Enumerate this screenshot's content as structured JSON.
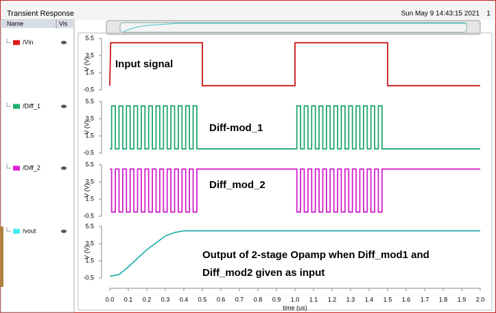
{
  "window": {
    "title": "Transient Response",
    "date": "Sun May 9 14:43:15 2021",
    "page": "1"
  },
  "legend_header": [
    "Name",
    "Vis"
  ],
  "chart_data": {
    "type": "line",
    "xlabel": "time (us)",
    "ylabel": "V (V)",
    "xlim": [
      0,
      2.0
    ],
    "xticks": [
      {
        "value": 0,
        "label": "0.0"
      },
      0.1,
      0.2,
      0.3,
      0.4,
      0.5,
      0.6,
      0.7,
      0.8,
      0.9,
      {
        "value": 1,
        "label": "1.0"
      },
      1.1,
      1.2,
      1.3,
      1.4,
      1.5,
      1.6,
      1.7,
      1.8,
      1.9,
      {
        "value": 2,
        "label": "2.0"
      }
    ],
    "ylim": [
      -0.5,
      5.5
    ],
    "yticks": [
      -0.5,
      1.5,
      3.5,
      5.5
    ],
    "series": [
      {
        "name": "/Vin",
        "color": "#c81414",
        "swatch": "#e01818",
        "annotation": [
          "Input signal"
        ],
        "x": [
          0,
          0.005,
          0.5,
          0.5,
          1.0,
          1.0,
          1.5,
          1.5,
          2.0
        ],
        "values": [
          0,
          5,
          5,
          0,
          0,
          5,
          5,
          0,
          0
        ]
      },
      {
        "name": "/Diff_1",
        "color": "#1fa56e",
        "swatch": "#1fb070",
        "annotation": [
          "Diff-mod_1"
        ],
        "x": [
          0,
          0.01,
          0.01,
          0.03,
          0.03,
          0.05,
          0.05,
          0.07,
          0.07,
          0.09,
          0.09,
          0.11,
          0.11,
          0.13,
          0.13,
          0.15,
          0.15,
          0.17,
          0.17,
          0.19,
          0.19,
          0.21,
          0.21,
          0.23,
          0.23,
          0.25,
          0.25,
          0.27,
          0.27,
          0.29,
          0.29,
          0.31,
          0.31,
          0.33,
          0.33,
          0.35,
          0.35,
          0.37,
          0.37,
          0.39,
          0.39,
          0.41,
          0.41,
          0.43,
          0.43,
          0.45,
          0.45,
          0.47,
          0.47,
          1.01,
          1.01,
          1.03,
          1.03,
          1.05,
          1.05,
          1.07,
          1.07,
          1.09,
          1.09,
          1.11,
          1.11,
          1.13,
          1.13,
          1.15,
          1.15,
          1.17,
          1.17,
          1.19,
          1.19,
          1.21,
          1.21,
          1.23,
          1.23,
          1.25,
          1.25,
          1.27,
          1.27,
          1.29,
          1.29,
          1.31,
          1.31,
          1.33,
          1.33,
          1.35,
          1.35,
          1.37,
          1.37,
          1.39,
          1.39,
          1.41,
          1.41,
          1.43,
          1.43,
          1.45,
          1.45,
          1.47,
          1.47,
          2.0
        ],
        "values": [
          0,
          0,
          5,
          5,
          0,
          0,
          5,
          5,
          0,
          0,
          5,
          5,
          0,
          0,
          5,
          5,
          0,
          0,
          5,
          5,
          0,
          0,
          5,
          5,
          0,
          0,
          5,
          5,
          0,
          0,
          5,
          5,
          0,
          0,
          5,
          5,
          0,
          0,
          5,
          5,
          0,
          0,
          5,
          5,
          0,
          0,
          5,
          5,
          0,
          0,
          5,
          5,
          0,
          0,
          5,
          5,
          0,
          0,
          5,
          5,
          0,
          0,
          5,
          5,
          0,
          0,
          5,
          5,
          0,
          0,
          5,
          5,
          0,
          0,
          5,
          5,
          0,
          0,
          5,
          5,
          0,
          0,
          5,
          5,
          0,
          0,
          5,
          5,
          0,
          0,
          5,
          5,
          0,
          0,
          5,
          5,
          0,
          0
        ]
      },
      {
        "name": "/Diff_2",
        "color": "#d020c8",
        "swatch": "#e020d8",
        "annotation": [
          "Diff_mod_2"
        ],
        "x": [
          0,
          0.01,
          0.01,
          0.03,
          0.03,
          0.05,
          0.05,
          0.07,
          0.07,
          0.09,
          0.09,
          0.11,
          0.11,
          0.13,
          0.13,
          0.15,
          0.15,
          0.17,
          0.17,
          0.19,
          0.19,
          0.21,
          0.21,
          0.23,
          0.23,
          0.25,
          0.25,
          0.27,
          0.27,
          0.29,
          0.29,
          0.31,
          0.31,
          0.33,
          0.33,
          0.35,
          0.35,
          0.37,
          0.37,
          0.39,
          0.39,
          0.41,
          0.41,
          0.43,
          0.43,
          0.45,
          0.45,
          0.47,
          0.47,
          1.01,
          1.01,
          1.03,
          1.03,
          1.05,
          1.05,
          1.07,
          1.07,
          1.09,
          1.09,
          1.11,
          1.11,
          1.13,
          1.13,
          1.15,
          1.15,
          1.17,
          1.17,
          1.19,
          1.19,
          1.21,
          1.21,
          1.23,
          1.23,
          1.25,
          1.25,
          1.27,
          1.27,
          1.29,
          1.29,
          1.31,
          1.31,
          1.33,
          1.33,
          1.35,
          1.35,
          1.37,
          1.37,
          1.39,
          1.39,
          1.41,
          1.41,
          1.43,
          1.43,
          1.45,
          1.45,
          1.47,
          1.47,
          2.0
        ],
        "values": [
          5,
          5,
          0,
          0,
          5,
          5,
          0,
          0,
          5,
          5,
          0,
          0,
          5,
          5,
          0,
          0,
          5,
          5,
          0,
          0,
          5,
          5,
          0,
          0,
          5,
          5,
          0,
          0,
          5,
          5,
          0,
          0,
          5,
          5,
          0,
          0,
          5,
          5,
          0,
          0,
          5,
          5,
          0,
          0,
          5,
          5,
          0,
          0,
          5,
          5,
          0,
          0,
          5,
          5,
          0,
          0,
          5,
          5,
          0,
          0,
          5,
          5,
          0,
          0,
          5,
          5,
          0,
          0,
          5,
          5,
          0,
          0,
          5,
          5,
          0,
          0,
          5,
          5,
          0,
          0,
          5,
          5,
          0,
          0,
          5,
          5,
          0,
          0,
          5,
          5,
          0,
          0,
          5,
          5,
          0,
          0,
          5,
          5
        ]
      },
      {
        "name": "/vout",
        "color": "#2ab3ad",
        "swatch": "#40ecec",
        "annotation": [
          "Output of 2-stage Opamp when Diff_mod1 and",
          "Diff_mod2 given as input"
        ],
        "x": [
          0,
          0.05,
          0.1,
          0.15,
          0.2,
          0.25,
          0.3,
          0.35,
          0.4,
          2.0
        ],
        "values": [
          -0.3,
          -0.1,
          0.8,
          1.8,
          2.8,
          3.6,
          4.4,
          4.8,
          5.0,
          5.0
        ]
      }
    ]
  }
}
